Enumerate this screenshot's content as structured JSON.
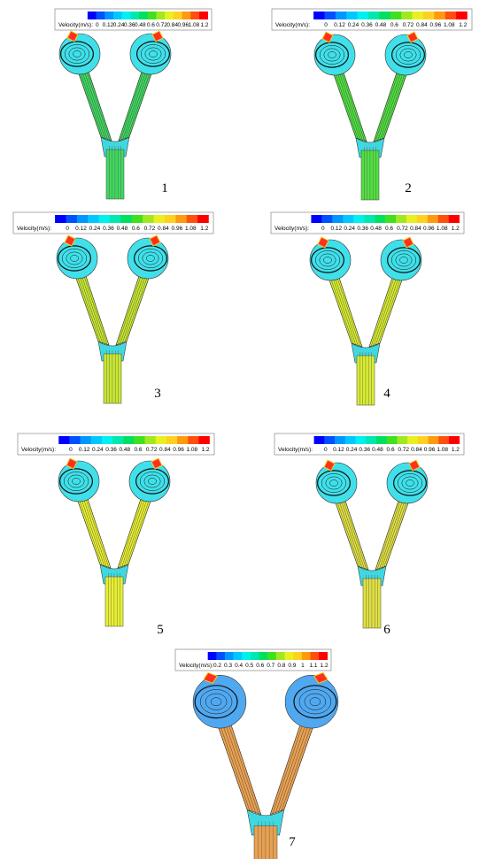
{
  "colormap": [
    "#0000ff",
    "#0050ff",
    "#0096ff",
    "#00c8ff",
    "#00f0f0",
    "#00e8b0",
    "#00e060",
    "#40e020",
    "#a0e820",
    "#e8f020",
    "#ffd020",
    "#ff9a10",
    "#ff5010",
    "#ff0000"
  ],
  "panels": [
    {
      "label": "1",
      "stem_color": "#40d860",
      "colorbar": {
        "title": "Velocity(m/s):",
        "ticks": [
          0,
          0.12,
          0.24,
          0.36,
          0.48,
          0.6,
          0.72,
          0.84,
          0.96,
          1.08,
          1.2
        ]
      }
    },
    {
      "label": "2",
      "stem_color": "#50e040",
      "colorbar": {
        "title": "Velocity(m/s):",
        "ticks": [
          0,
          0.12,
          0.24,
          0.36,
          0.48,
          0.6,
          0.72,
          0.84,
          0.96,
          1.08,
          1.2
        ]
      }
    },
    {
      "label": "3",
      "stem_color": "#c8e830",
      "colorbar": {
        "title": "Velocity(m/s):",
        "ticks": [
          0,
          0.12,
          0.24,
          0.36,
          0.48,
          0.6,
          0.72,
          0.84,
          0.96,
          1.08,
          1.2
        ]
      }
    },
    {
      "label": "4",
      "stem_color": "#d8ec30",
      "colorbar": {
        "title": "Velocity(m/s):",
        "ticks": [
          0,
          0.12,
          0.24,
          0.36,
          0.48,
          0.6,
          0.72,
          0.84,
          0.96,
          1.08,
          1.2
        ]
      }
    },
    {
      "label": "5",
      "stem_color": "#e8f030",
      "colorbar": {
        "title": "Velocity(m/s):",
        "ticks": [
          0,
          0.12,
          0.24,
          0.36,
          0.48,
          0.6,
          0.72,
          0.84,
          0.96,
          1.08,
          1.2
        ]
      }
    },
    {
      "label": "6",
      "stem_color": "#e0e040",
      "colorbar": {
        "title": "Velocity(m/s):",
        "ticks": [
          0,
          0.12,
          0.24,
          0.36,
          0.48,
          0.6,
          0.72,
          0.84,
          0.96,
          1.08,
          1.2
        ]
      }
    },
    {
      "label": "7",
      "stem_color": "#e8a050",
      "colorbar": {
        "title": "Velocity(m/s):",
        "ticks": [
          0.2,
          0.3,
          0.4,
          0.5,
          0.6,
          0.7,
          0.8,
          0.9,
          1,
          1.1,
          1.2
        ]
      }
    }
  ]
}
